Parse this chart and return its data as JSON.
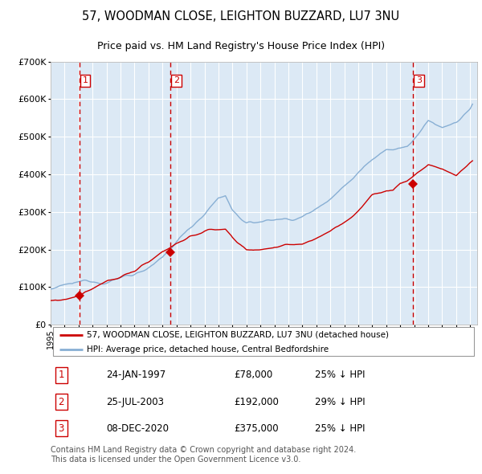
{
  "title": "57, WOODMAN CLOSE, LEIGHTON BUZZARD, LU7 3NU",
  "subtitle": "Price paid vs. HM Land Registry's House Price Index (HPI)",
  "title_fontsize": 10.5,
  "subtitle_fontsize": 9,
  "bg_color": "#dce9f5",
  "grid_color": "#c8d8ea",
  "sale_dates_num": [
    1997.07,
    2003.57,
    2020.93
  ],
  "sale_prices": [
    78000,
    192000,
    375000
  ],
  "sale_labels": [
    "1",
    "2",
    "3"
  ],
  "red_line_color": "#cc0000",
  "blue_line_color": "#88afd4",
  "vline_color": "#cc0000",
  "marker_color": "#cc0000",
  "ylim": [
    0,
    700000
  ],
  "xlim": [
    1995.0,
    2025.5
  ],
  "yticks": [
    0,
    100000,
    200000,
    300000,
    400000,
    500000,
    600000,
    700000
  ],
  "ytick_labels": [
    "£0",
    "£100K",
    "£200K",
    "£300K",
    "£400K",
    "£500K",
    "£600K",
    "£700K"
  ],
  "xtick_years": [
    1995,
    1996,
    1997,
    1998,
    1999,
    2000,
    2001,
    2002,
    2003,
    2004,
    2005,
    2006,
    2007,
    2008,
    2009,
    2010,
    2011,
    2012,
    2013,
    2014,
    2015,
    2016,
    2017,
    2018,
    2019,
    2020,
    2021,
    2022,
    2023,
    2024,
    2025
  ],
  "legend_label_red": "57, WOODMAN CLOSE, LEIGHTON BUZZARD, LU7 3NU (detached house)",
  "legend_label_blue": "HPI: Average price, detached house, Central Bedfordshire",
  "table_rows": [
    [
      "1",
      "24-JAN-1997",
      "£78,000",
      "25% ↓ HPI"
    ],
    [
      "2",
      "25-JUL-2003",
      "£192,000",
      "29% ↓ HPI"
    ],
    [
      "3",
      "08-DEC-2020",
      "£375,000",
      "25% ↓ HPI"
    ]
  ],
  "footnote": "Contains HM Land Registry data © Crown copyright and database right 2024.\nThis data is licensed under the Open Government Licence v3.0.",
  "footnote_fontsize": 7
}
